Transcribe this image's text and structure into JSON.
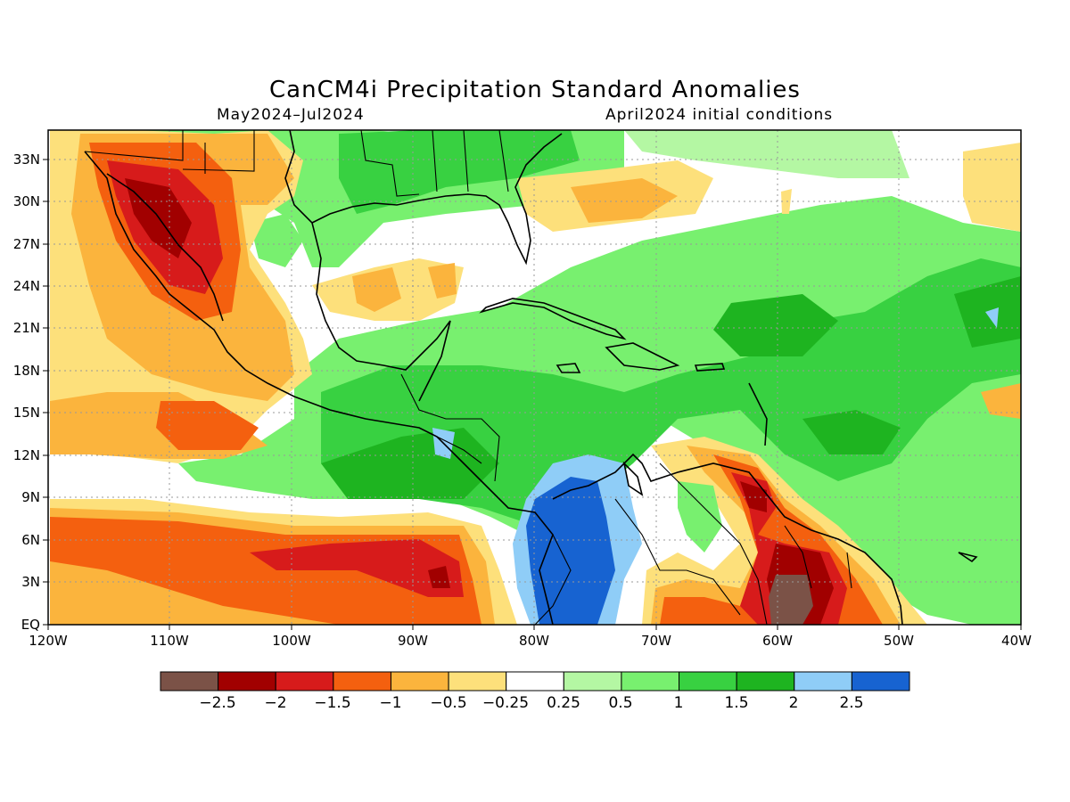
{
  "header": {
    "title": "CanCM4i Precipitation Standard Anomalies",
    "period": "May2024–Jul2024",
    "init": "April2024 initial conditions"
  },
  "map": {
    "lat_range": [
      0,
      35
    ],
    "lon_range": [
      -120,
      -40
    ],
    "lat_ticks": [
      "33N",
      "30N",
      "27N",
      "24N",
      "21N",
      "18N",
      "15N",
      "12N",
      "9N",
      "6N",
      "3N",
      "EQ"
    ],
    "lon_ticks": [
      "120W",
      "110W",
      "100W",
      "90W",
      "80W",
      "70W",
      "60W",
      "50W",
      "40W"
    ],
    "grid": true
  },
  "colorbar": {
    "colors": [
      "#7b5247",
      "#a10000",
      "#d71b1b",
      "#f4600f",
      "#fbb43d",
      "#fde07b",
      "#ffffff",
      "#b4f7a3",
      "#78f06f",
      "#38d141",
      "#1eb420",
      "#8fcdf7",
      "#1763d1"
    ],
    "labels": [
      "−2.5",
      "−2",
      "−1.5",
      "−1",
      "−0.5",
      "−0.25",
      "0.25",
      "0.5",
      "1",
      "1.5",
      "2",
      "2.5"
    ]
  }
}
